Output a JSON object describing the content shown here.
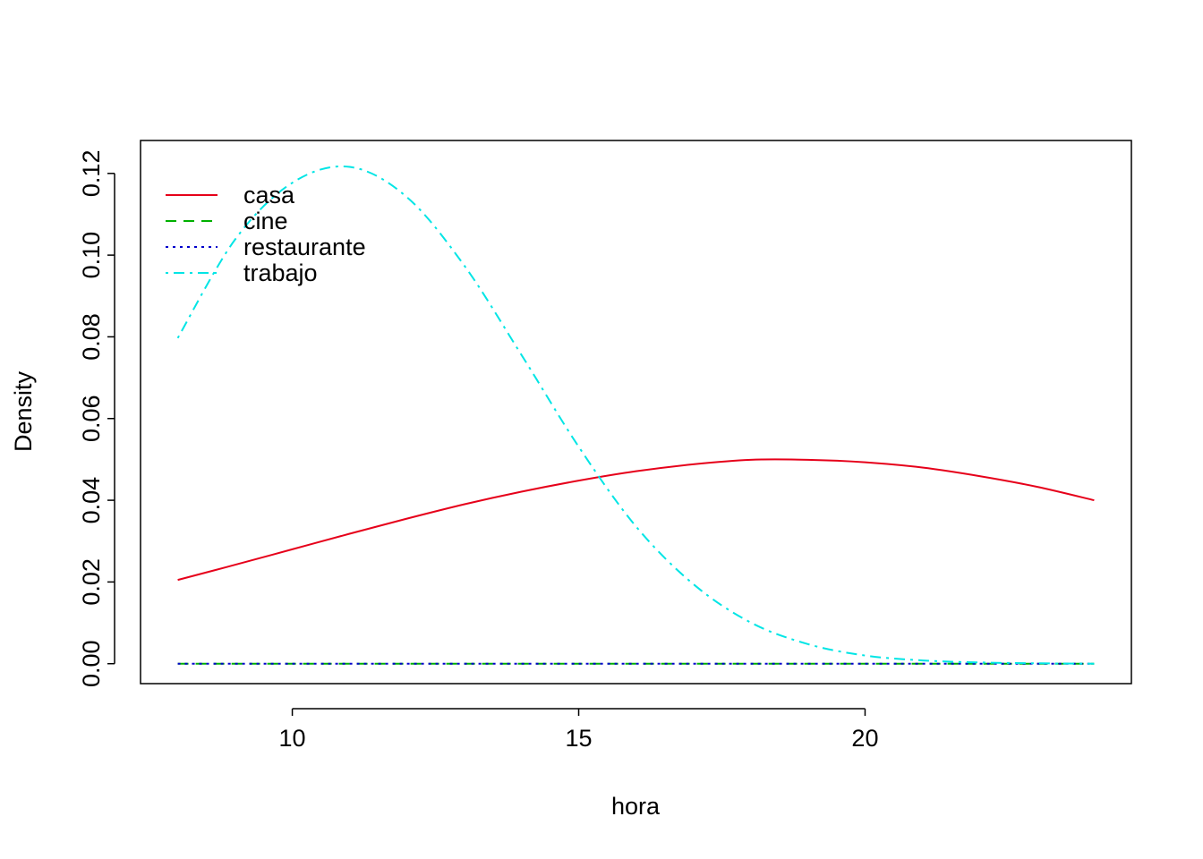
{
  "chart_data": {
    "type": "line",
    "title": "",
    "xlabel": "hora",
    "ylabel": "Density",
    "xlim": [
      7.35,
      24.65
    ],
    "ylim": [
      -0.00488,
      0.12806
    ],
    "grid": false,
    "legend_position": "top-left",
    "x_ticks": [
      10,
      15,
      20
    ],
    "x_tick_labels": [
      "10",
      "15",
      "20"
    ],
    "y_ticks": [
      0,
      0.02,
      0.04,
      0.06,
      0.08,
      0.1,
      0.12
    ],
    "y_tick_labels": [
      "0.00",
      "0.02",
      "0.04",
      "0.06",
      "0.08",
      "0.10",
      "0.12"
    ],
    "x": [
      8,
      9,
      10,
      11,
      12,
      13,
      14,
      15,
      16,
      17,
      18,
      19,
      20,
      21,
      22,
      23,
      24
    ],
    "series": [
      {
        "name": "casa",
        "color": "#e6001a",
        "dash": "solid",
        "values": [
          0.0205,
          0.0242,
          0.028,
          0.0318,
          0.0355,
          0.039,
          0.0421,
          0.0448,
          0.0471,
          0.0488,
          0.0499,
          0.0499,
          0.0493,
          0.048,
          0.0459,
          0.0433,
          0.04
        ]
      },
      {
        "name": "cine",
        "color": "#00b000",
        "dash": "dashed",
        "values": [
          0,
          0,
          0,
          0,
          0,
          0,
          0,
          0,
          0,
          0,
          0,
          0,
          0,
          0,
          0,
          0,
          0
        ]
      },
      {
        "name": "restaurante",
        "color": "#0000cc",
        "dash": "dotted",
        "values": [
          0,
          0,
          0,
          0,
          0,
          0,
          0,
          0,
          0,
          0,
          0,
          0,
          0,
          0,
          0,
          0,
          0
        ]
      },
      {
        "name": "trabajo",
        "color": "#00e5e5",
        "dash": "dotdash",
        "values": [
          0.0797,
          0.1038,
          0.1177,
          0.1216,
          0.1142,
          0.0975,
          0.0756,
          0.0531,
          0.0336,
          0.0195,
          0.0101,
          0.0048,
          0.002,
          0.0008,
          0.0003,
          0.0001,
          0
        ]
      }
    ]
  }
}
